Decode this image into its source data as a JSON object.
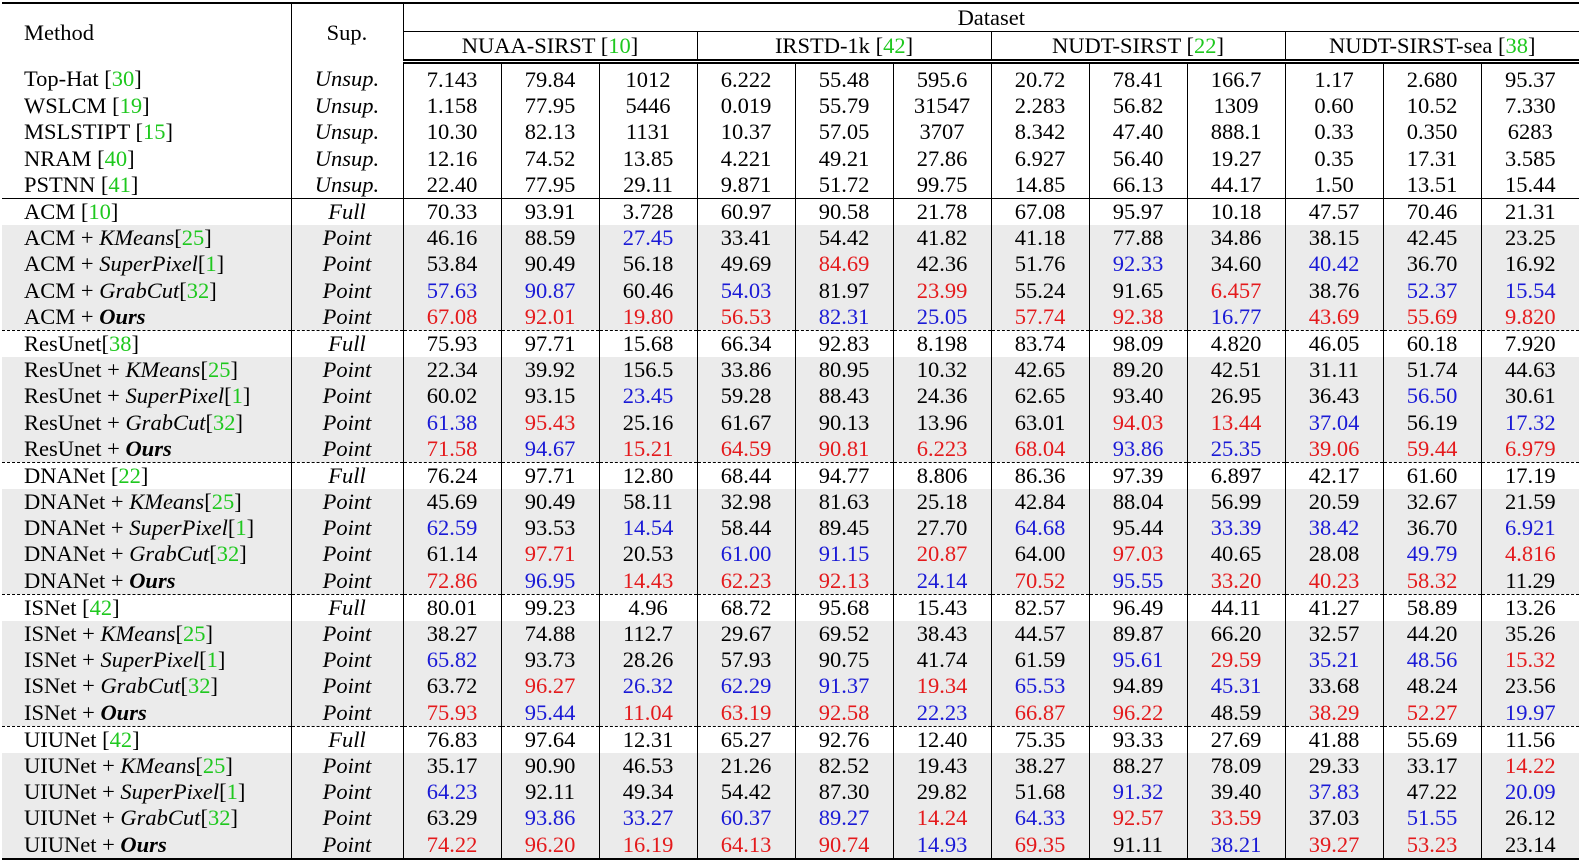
{
  "table": {
    "header": {
      "method": "Method",
      "sup": "Sup.",
      "dataset": "Dataset",
      "datasets": [
        {
          "name": "NUAA-SIRST",
          "ref": "10"
        },
        {
          "name": "IRSTD-1k",
          "ref": "42"
        },
        {
          "name": "NUDT-SIRST",
          "ref": "22"
        },
        {
          "name": "NUDT-SIRST-sea",
          "ref": "38"
        }
      ]
    },
    "colors": {
      "best": "#e41a1c",
      "second": "#1a1ad6",
      "citation": "#1ec81e",
      "row_shade": "#ebebeb"
    },
    "rows": [
      {
        "base": "Top-Hat",
        "ref": "30",
        "addon": "",
        "addon_ref": "",
        "sup": "Unsup.",
        "group": "unsup",
        "values": [
          "7.143",
          "79.84",
          "1012",
          "6.222",
          "55.48",
          "595.6",
          "20.72",
          "78.41",
          "166.7",
          "1.17",
          "2.680",
          "95.37"
        ],
        "marks": [
          "",
          "",
          "",
          "",
          "",
          "",
          "",
          "",
          "",
          "",
          "",
          ""
        ]
      },
      {
        "base": "WSLCM",
        "ref": "19",
        "addon": "",
        "addon_ref": "",
        "sup": "Unsup.",
        "group": "unsup",
        "values": [
          "1.158",
          "77.95",
          "5446",
          "0.019",
          "55.79",
          "31547",
          "2.283",
          "56.82",
          "1309",
          "0.60",
          "10.52",
          "7.330"
        ],
        "marks": [
          "",
          "",
          "",
          "",
          "",
          "",
          "",
          "",
          "",
          "",
          "",
          ""
        ]
      },
      {
        "base": "MSLSTIPT",
        "ref": "15",
        "addon": "",
        "addon_ref": "",
        "sup": "Unsup.",
        "group": "unsup",
        "values": [
          "10.30",
          "82.13",
          "1131",
          "10.37",
          "57.05",
          "3707",
          "8.342",
          "47.40",
          "888.1",
          "0.33",
          "0.350",
          "6283"
        ],
        "marks": [
          "",
          "",
          "",
          "",
          "",
          "",
          "",
          "",
          "",
          "",
          "",
          ""
        ]
      },
      {
        "base": "NRAM",
        "ref": "40",
        "addon": "",
        "addon_ref": "",
        "sup": "Unsup.",
        "group": "unsup",
        "values": [
          "12.16",
          "74.52",
          "13.85",
          "4.221",
          "49.21",
          "27.86",
          "6.927",
          "56.40",
          "19.27",
          "0.35",
          "17.31",
          "3.585"
        ],
        "marks": [
          "",
          "",
          "",
          "",
          "",
          "",
          "",
          "",
          "",
          "",
          "",
          ""
        ]
      },
      {
        "base": "PSTNN",
        "ref": "41",
        "addon": "",
        "addon_ref": "",
        "sup": "Unsup.",
        "group": "unsup",
        "values": [
          "22.40",
          "77.95",
          "29.11",
          "9.871",
          "51.72",
          "99.75",
          "14.85",
          "66.13",
          "44.17",
          "1.50",
          "13.51",
          "15.44"
        ],
        "marks": [
          "",
          "",
          "",
          "",
          "",
          "",
          "",
          "",
          "",
          "",
          "",
          ""
        ]
      },
      {
        "base": "ACM",
        "ref": "10",
        "addon": "",
        "addon_ref": "",
        "sup": "Full",
        "group": "full",
        "values": [
          "70.33",
          "93.91",
          "3.728",
          "60.97",
          "90.58",
          "21.78",
          "67.08",
          "95.97",
          "10.18",
          "47.57",
          "70.46",
          "21.31"
        ],
        "marks": [
          "",
          "",
          "",
          "",
          "",
          "",
          "",
          "",
          "",
          "",
          "",
          ""
        ]
      },
      {
        "base": "ACM + ",
        "ref": "",
        "addon": "KMeans",
        "addon_ref": "25",
        "sup": "Point",
        "group": "point",
        "values": [
          "46.16",
          "88.59",
          "27.45",
          "33.41",
          "54.42",
          "41.82",
          "41.18",
          "77.88",
          "34.86",
          "38.15",
          "42.45",
          "23.25"
        ],
        "marks": [
          "",
          "",
          "blue",
          "",
          "",
          "",
          "",
          "",
          "",
          "",
          "",
          ""
        ]
      },
      {
        "base": "ACM + ",
        "ref": "",
        "addon": "SuperPixel",
        "addon_ref": "1",
        "sup": "Point",
        "group": "point",
        "values": [
          "53.84",
          "90.49",
          "56.18",
          "49.69",
          "84.69",
          "42.36",
          "51.76",
          "92.33",
          "34.60",
          "40.42",
          "36.70",
          "16.92"
        ],
        "marks": [
          "",
          "",
          "",
          "",
          "red",
          "",
          "",
          "blue",
          "",
          "blue",
          "",
          ""
        ]
      },
      {
        "base": "ACM + ",
        "ref": "",
        "addon": "GrabCut",
        "addon_ref": "32",
        "sup": "Point",
        "group": "point",
        "values": [
          "57.63",
          "90.87",
          "60.46",
          "54.03",
          "81.97",
          "23.99",
          "55.24",
          "91.65",
          "6.457",
          "38.76",
          "52.37",
          "15.54"
        ],
        "marks": [
          "blue",
          "blue",
          "",
          "blue",
          "",
          "red",
          "",
          "",
          "red",
          "",
          "blue",
          "blue"
        ]
      },
      {
        "base": "ACM + ",
        "ref": "",
        "addon": "Ours",
        "addon_ref": "",
        "ours": true,
        "sup": "Point",
        "group": "point",
        "values": [
          "67.08",
          "92.01",
          "19.80",
          "56.53",
          "82.31",
          "25.05",
          "57.74",
          "92.38",
          "16.77",
          "43.69",
          "55.69",
          "9.820"
        ],
        "marks": [
          "red",
          "red",
          "red",
          "red",
          "blue",
          "blue",
          "red",
          "red",
          "blue",
          "red",
          "red",
          "red"
        ]
      },
      {
        "base": "ResUnet",
        "ref": "38",
        "addon": "",
        "addon_ref": "",
        "sup": "Full",
        "group": "full",
        "values": [
          "75.93",
          "97.71",
          "15.68",
          "66.34",
          "92.83",
          "8.198",
          "83.74",
          "98.09",
          "4.820",
          "46.05",
          "60.18",
          "7.920"
        ],
        "marks": [
          "",
          "",
          "",
          "",
          "",
          "",
          "",
          "",
          "",
          "",
          "",
          ""
        ]
      },
      {
        "base": "ResUnet + ",
        "ref": "",
        "addon": "KMeans",
        "addon_ref": "25",
        "sup": "Point",
        "group": "point",
        "values": [
          "22.34",
          "39.92",
          "156.5",
          "33.86",
          "80.95",
          "10.32",
          "42.65",
          "89.20",
          "42.51",
          "31.11",
          "51.74",
          "44.63"
        ],
        "marks": [
          "",
          "",
          "",
          "",
          "",
          "",
          "",
          "",
          "",
          "",
          "",
          ""
        ]
      },
      {
        "base": "ResUnet + ",
        "ref": "",
        "addon": "SuperPixel",
        "addon_ref": "1",
        "sup": "Point",
        "group": "point",
        "values": [
          "60.02",
          "93.15",
          "23.45",
          "59.28",
          "88.43",
          "24.36",
          "62.65",
          "93.40",
          "26.95",
          "36.43",
          "56.50",
          "30.61"
        ],
        "marks": [
          "",
          "",
          "blue",
          "",
          "",
          "",
          "",
          "",
          "",
          "",
          "blue",
          ""
        ]
      },
      {
        "base": "ResUnet + ",
        "ref": "",
        "addon": "GrabCut",
        "addon_ref": "32",
        "sup": "Point",
        "group": "point",
        "values": [
          "61.38",
          "95.43",
          "25.16",
          "61.67",
          "90.13",
          "13.96",
          "63.01",
          "94.03",
          "13.44",
          "37.04",
          "56.19",
          "17.32"
        ],
        "marks": [
          "blue",
          "red",
          "",
          "",
          "",
          "",
          "",
          "red",
          "red",
          "blue",
          "",
          "blue"
        ]
      },
      {
        "base": "ResUnet + ",
        "ref": "",
        "addon": "Ours",
        "addon_ref": "",
        "ours": true,
        "sup": "Point",
        "group": "point",
        "values": [
          "71.58",
          "94.67",
          "15.21",
          "64.59",
          "90.81",
          "6.223",
          "68.04",
          "93.86",
          "25.35",
          "39.06",
          "59.44",
          "6.979"
        ],
        "marks": [
          "red",
          "blue",
          "red",
          "red",
          "red",
          "red",
          "red",
          "blue",
          "blue",
          "red",
          "red",
          "red"
        ]
      },
      {
        "base": "DNANet",
        "ref": "22",
        "addon": "",
        "addon_ref": "",
        "sup": "Full",
        "group": "full",
        "values": [
          "76.24",
          "97.71",
          "12.80",
          "68.44",
          "94.77",
          "8.806",
          "86.36",
          "97.39",
          "6.897",
          "42.17",
          "61.60",
          "17.19"
        ],
        "marks": [
          "",
          "",
          "",
          "",
          "",
          "",
          "",
          "",
          "",
          "",
          "",
          ""
        ]
      },
      {
        "base": "DNANet + ",
        "ref": "",
        "addon": "KMeans",
        "addon_ref": "25",
        "sup": "Point",
        "group": "point",
        "values": [
          "45.69",
          "90.49",
          "58.11",
          "32.98",
          "81.63",
          "25.18",
          "42.84",
          "88.04",
          "56.99",
          "20.59",
          "32.67",
          "21.59"
        ],
        "marks": [
          "",
          "",
          "",
          "",
          "",
          "",
          "",
          "",
          "",
          "",
          "",
          ""
        ]
      },
      {
        "base": "DNANet + ",
        "ref": "",
        "addon": "SuperPixel",
        "addon_ref": "1",
        "sup": "Point",
        "group": "point",
        "values": [
          "62.59",
          "93.53",
          "14.54",
          "58.44",
          "89.45",
          "27.70",
          "64.68",
          "95.44",
          "33.39",
          "38.42",
          "36.70",
          "6.921"
        ],
        "marks": [
          "blue",
          "",
          "blue",
          "",
          "",
          "",
          "blue",
          "",
          "blue",
          "blue",
          "",
          "blue"
        ]
      },
      {
        "base": "DNANet + ",
        "ref": "",
        "addon": "GrabCut",
        "addon_ref": "32",
        "sup": "Point",
        "group": "point",
        "values": [
          "61.14",
          "97.71",
          "20.53",
          "61.00",
          "91.15",
          "20.87",
          "64.00",
          "97.03",
          "40.65",
          "28.08",
          "49.79",
          "4.816"
        ],
        "marks": [
          "",
          "red",
          "",
          "blue",
          "blue",
          "red",
          "",
          "red",
          "",
          "",
          "blue",
          "red"
        ]
      },
      {
        "base": "DNANet + ",
        "ref": "",
        "addon": "Ours",
        "addon_ref": "",
        "ours": true,
        "sup": "Point",
        "group": "point",
        "values": [
          "72.86",
          "96.95",
          "14.43",
          "62.23",
          "92.13",
          "24.14",
          "70.52",
          "95.55",
          "33.20",
          "40.23",
          "58.32",
          "11.29"
        ],
        "marks": [
          "red",
          "blue",
          "red",
          "red",
          "red",
          "blue",
          "red",
          "blue",
          "red",
          "red",
          "red",
          ""
        ]
      },
      {
        "base": "ISNet",
        "ref": "42",
        "addon": "",
        "addon_ref": "",
        "sup": "Full",
        "group": "full",
        "values": [
          "80.01",
          "99.23",
          "4.96",
          "68.72",
          "95.68",
          "15.43",
          "82.57",
          "96.49",
          "44.11",
          "41.27",
          "58.89",
          "13.26"
        ],
        "marks": [
          "",
          "",
          "",
          "",
          "",
          "",
          "",
          "",
          "",
          "",
          "",
          ""
        ]
      },
      {
        "base": "ISNet + ",
        "ref": "",
        "addon": "KMeans",
        "addon_ref": "25",
        "sup": "Point",
        "group": "point",
        "values": [
          "38.27",
          "74.88",
          "112.7",
          "29.67",
          "69.52",
          "38.43",
          "44.57",
          "89.87",
          "66.20",
          "32.57",
          "44.20",
          "35.26"
        ],
        "marks": [
          "",
          "",
          "",
          "",
          "",
          "",
          "",
          "",
          "",
          "",
          "",
          ""
        ]
      },
      {
        "base": "ISNet + ",
        "ref": "",
        "addon": "SuperPixel",
        "addon_ref": "1",
        "sup": "Point",
        "group": "point",
        "values": [
          "65.82",
          "93.73",
          "28.26",
          "57.93",
          "90.75",
          "41.74",
          "61.59",
          "95.61",
          "29.59",
          "35.21",
          "48.56",
          "15.32"
        ],
        "marks": [
          "blue",
          "",
          "",
          "",
          "",
          "",
          "",
          "blue",
          "red",
          "blue",
          "blue",
          "red"
        ]
      },
      {
        "base": "ISNet + ",
        "ref": "",
        "addon": "GrabCut",
        "addon_ref": "32",
        "sup": "Point",
        "group": "point",
        "values": [
          "63.72",
          "96.27",
          "26.32",
          "62.29",
          "91.37",
          "19.34",
          "65.53",
          "94.89",
          "45.31",
          "33.68",
          "48.24",
          "23.56"
        ],
        "marks": [
          "",
          "red",
          "blue",
          "blue",
          "blue",
          "red",
          "blue",
          "",
          "blue",
          "",
          "",
          ""
        ]
      },
      {
        "base": "ISNet + ",
        "ref": "",
        "addon": "Ours",
        "addon_ref": "",
        "ours": true,
        "sup": "Point",
        "group": "point",
        "values": [
          "75.93",
          "95.44",
          "11.04",
          "63.19",
          "92.58",
          "22.23",
          "66.87",
          "96.22",
          "48.59",
          "38.29",
          "52.27",
          "19.97"
        ],
        "marks": [
          "red",
          "blue",
          "red",
          "red",
          "red",
          "blue",
          "red",
          "red",
          "",
          "red",
          "red",
          "blue"
        ]
      },
      {
        "base": "UIUNet",
        "ref": "42",
        "addon": "",
        "addon_ref": "",
        "sup": "Full",
        "group": "full",
        "values": [
          "76.83",
          "97.64",
          "12.31",
          "65.27",
          "92.76",
          "12.40",
          "75.35",
          "93.33",
          "27.69",
          "41.88",
          "55.69",
          "11.56"
        ],
        "marks": [
          "",
          "",
          "",
          "",
          "",
          "",
          "",
          "",
          "",
          "",
          "",
          ""
        ]
      },
      {
        "base": "UIUNet + ",
        "ref": "",
        "addon": "KMeans",
        "addon_ref": "25",
        "sup": "Point",
        "group": "point",
        "values": [
          "35.17",
          "90.90",
          "46.53",
          "21.26",
          "82.52",
          "19.43",
          "38.27",
          "88.27",
          "78.09",
          "29.33",
          "33.17",
          "14.22"
        ],
        "marks": [
          "",
          "",
          "",
          "",
          "",
          "",
          "",
          "",
          "",
          "",
          "",
          "red"
        ]
      },
      {
        "base": "UIUNet + ",
        "ref": "",
        "addon": "SuperPixel",
        "addon_ref": "1",
        "sup": "Point",
        "group": "point",
        "values": [
          "64.23",
          "92.11",
          "49.34",
          "54.42",
          "87.30",
          "29.82",
          "51.68",
          "91.32",
          "39.40",
          "37.83",
          "47.22",
          "20.09"
        ],
        "marks": [
          "blue",
          "",
          "",
          "",
          "",
          "",
          "",
          "blue",
          "",
          "blue",
          "",
          "blue"
        ]
      },
      {
        "base": "UIUNet + ",
        "ref": "",
        "addon": "GrabCut",
        "addon_ref": "32",
        "sup": "Point",
        "group": "point",
        "values": [
          "63.29",
          "93.86",
          "33.27",
          "60.37",
          "89.27",
          "14.24",
          "64.33",
          "92.57",
          "33.59",
          "37.03",
          "51.55",
          "26.12"
        ],
        "marks": [
          "",
          "blue",
          "blue",
          "blue",
          "blue",
          "red",
          "blue",
          "red",
          "red",
          "",
          "blue",
          ""
        ]
      },
      {
        "base": "UIUNet + ",
        "ref": "",
        "addon": "Ours",
        "addon_ref": "",
        "ours": true,
        "sup": "Point",
        "group": "point",
        "values": [
          "74.22",
          "96.20",
          "16.19",
          "64.13",
          "90.74",
          "14.93",
          "69.35",
          "91.11",
          "38.21",
          "39.27",
          "53.23",
          "23.14"
        ],
        "marks": [
          "red",
          "red",
          "red",
          "red",
          "red",
          "blue",
          "red",
          "",
          "blue",
          "red",
          "red",
          ""
        ]
      }
    ]
  }
}
